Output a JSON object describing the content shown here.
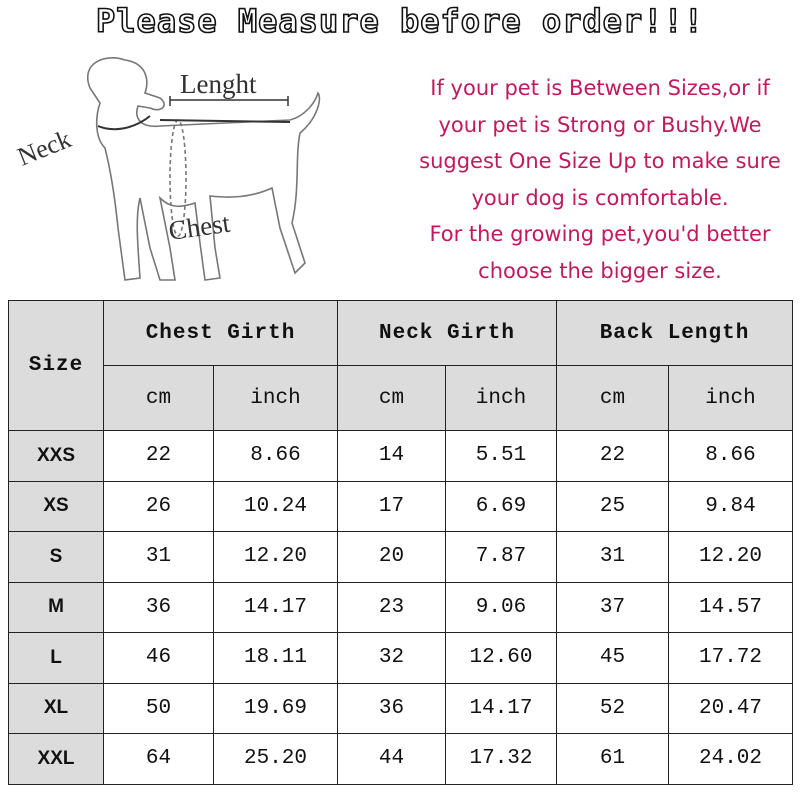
{
  "title": "Please Measure before order!!!",
  "diagram": {
    "neck_label": "Neck",
    "length_label": "Lenght",
    "chest_label": "Chest"
  },
  "note_lines": [
    "If your pet is Between Sizes,or if",
    "your pet is Strong or Bushy.We",
    "suggest One Size Up to make sure",
    "your dog is comfortable.",
    "For the growing pet,you'd better",
    "choose the bigger size."
  ],
  "colors": {
    "note_text": "#c2195e",
    "header_fill": "#dcdcdc"
  },
  "table": {
    "size_header": "Size",
    "groups": [
      "Chest Girth",
      "Neck Girth",
      "Back Length"
    ],
    "units": [
      "cm",
      "inch",
      "cm",
      "inch",
      "cm",
      "inch"
    ],
    "rows": [
      {
        "size": "XXS",
        "values": [
          "22",
          "8.66",
          "14",
          "5.51",
          "22",
          "8.66"
        ]
      },
      {
        "size": "XS",
        "values": [
          "26",
          "10.24",
          "17",
          "6.69",
          "25",
          "9.84"
        ]
      },
      {
        "size": "S",
        "values": [
          "31",
          "12.20",
          "20",
          "7.87",
          "31",
          "12.20"
        ]
      },
      {
        "size": "M",
        "values": [
          "36",
          "14.17",
          "23",
          "9.06",
          "37",
          "14.57"
        ]
      },
      {
        "size": "L",
        "values": [
          "46",
          "18.11",
          "32",
          "12.60",
          "45",
          "17.72"
        ]
      },
      {
        "size": "XL",
        "values": [
          "50",
          "19.69",
          "36",
          "14.17",
          "52",
          "20.47"
        ]
      },
      {
        "size": "XXL",
        "values": [
          "64",
          "25.20",
          "44",
          "17.32",
          "61",
          "24.02"
        ]
      }
    ]
  }
}
